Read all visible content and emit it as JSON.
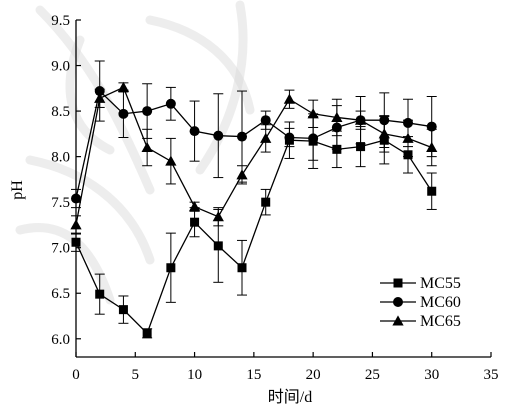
{
  "chart_data": {
    "type": "line",
    "xlabel": "时间/d",
    "ylabel": "pH",
    "xlim": [
      0,
      35
    ],
    "ylim": [
      5.8,
      9.5
    ],
    "xticks": [
      0,
      5,
      10,
      15,
      20,
      25,
      30,
      35
    ],
    "yticks": [
      6.0,
      6.5,
      7.0,
      7.5,
      8.0,
      8.5,
      9.0,
      9.5
    ],
    "legend_position": "bottom-right",
    "series": [
      {
        "name": "MC55",
        "marker": "square",
        "x": [
          0,
          2,
          4,
          6,
          8,
          10,
          12,
          14,
          16,
          18,
          20,
          22,
          24,
          26,
          28,
          30
        ],
        "y": [
          7.06,
          6.49,
          6.32,
          6.06,
          6.78,
          7.28,
          7.02,
          6.78,
          7.5,
          8.18,
          8.17,
          8.08,
          8.11,
          8.18,
          8.02,
          7.62
        ],
        "err": [
          0.1,
          0.22,
          0.15,
          0.05,
          0.38,
          0.16,
          0.4,
          0.3,
          0.14,
          0.2,
          0.3,
          0.2,
          0.22,
          0.26,
          0.2,
          0.2
        ]
      },
      {
        "name": "MC60",
        "marker": "circle",
        "x": [
          0,
          2,
          4,
          6,
          8,
          10,
          12,
          14,
          16,
          18,
          20,
          22,
          24,
          26,
          28,
          30
        ],
        "y": [
          7.54,
          8.72,
          8.47,
          8.5,
          8.58,
          8.28,
          8.23,
          8.22,
          8.4,
          8.21,
          8.2,
          8.32,
          8.4,
          8.4,
          8.37,
          8.33
        ],
        "err": [
          0.1,
          0.33,
          0.26,
          0.3,
          0.18,
          0.33,
          0.46,
          0.5,
          0.1,
          0.1,
          0.24,
          0.24,
          0.26,
          0.3,
          0.26,
          0.33
        ]
      },
      {
        "name": "MC65",
        "marker": "triangle",
        "x": [
          0,
          2,
          4,
          6,
          8,
          10,
          12,
          14,
          16,
          18,
          20,
          22,
          24,
          26,
          28,
          30
        ],
        "y": [
          7.25,
          8.64,
          8.76,
          8.1,
          7.95,
          7.45,
          7.34,
          7.8,
          8.2,
          8.63,
          8.47,
          8.43,
          8.4,
          8.25,
          8.2,
          8.1
        ],
        "err": [
          0.1,
          0.1,
          0.05,
          0.2,
          0.25,
          0.05,
          0.1,
          0.1,
          0.15,
          0.1,
          0.15,
          0.2,
          0.1,
          0.2,
          0.2,
          0.2
        ]
      }
    ]
  }
}
